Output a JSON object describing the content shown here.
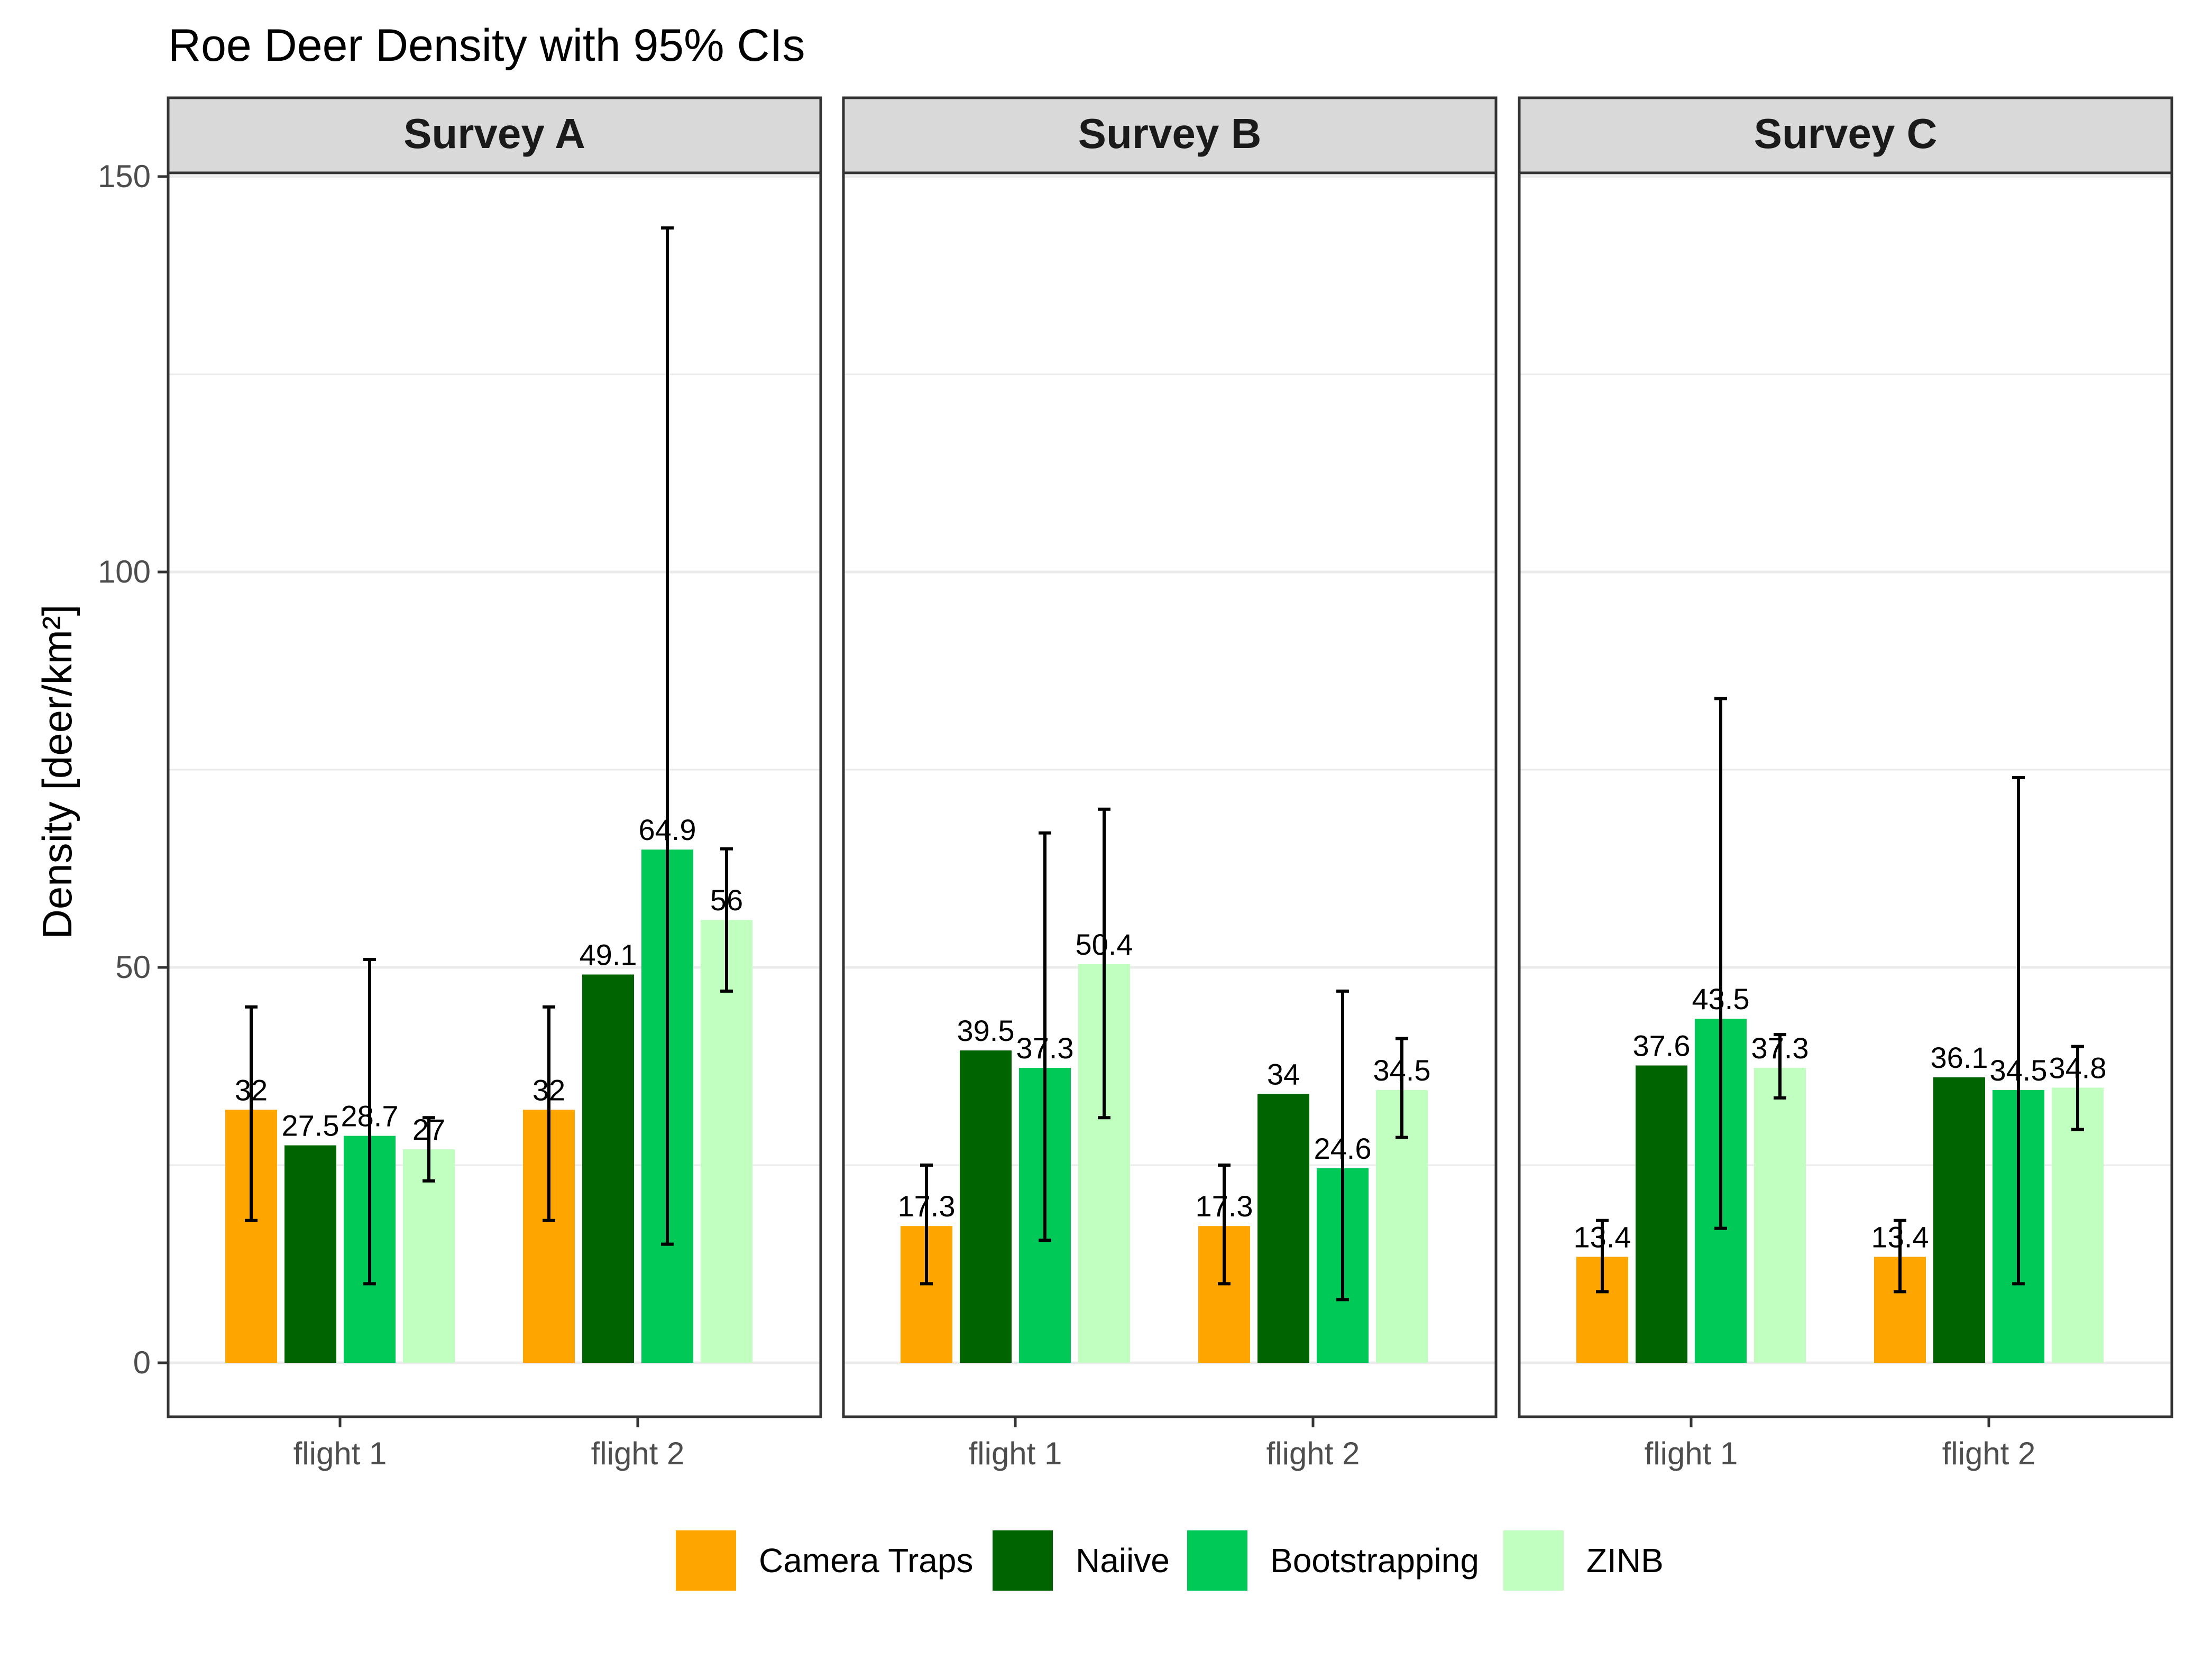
{
  "chart_data": {
    "type": "bar",
    "title": "Roe Deer Density with 95% CIs",
    "ylabel": "Density [deer/km²]",
    "xlabel": "",
    "ylim": [
      0,
      150
    ],
    "yticks": [
      0,
      50,
      100,
      150
    ],
    "grid": true,
    "legend_position": "bottom",
    "categories": [
      "flight 1",
      "flight 2"
    ],
    "series": [
      {
        "name": "Camera Traps",
        "color": "#FFA500"
      },
      {
        "name": "Naiive",
        "color": "#006400"
      },
      {
        "name": "Bootstrapping",
        "color": "#00C957"
      },
      {
        "name": "ZINB",
        "color": "#C1FFC1"
      }
    ],
    "panels": [
      {
        "name": "Survey A",
        "values": [
          [
            32,
            27.5,
            28.7,
            27
          ],
          [
            32,
            49.1,
            64.9,
            56
          ]
        ],
        "labels": [
          [
            "32",
            "27.5",
            "28.7",
            "27"
          ],
          [
            "32",
            "49.1",
            "64.9",
            "56"
          ]
        ],
        "ci": [
          [
            [
              18,
              45
            ],
            null,
            [
              10,
              51
            ],
            [
              23,
              31
            ]
          ],
          [
            [
              18,
              45
            ],
            null,
            [
              15,
              143.5
            ],
            [
              47,
              65
            ]
          ]
        ]
      },
      {
        "name": "Survey B",
        "values": [
          [
            17.3,
            39.5,
            37.3,
            50.4
          ],
          [
            17.3,
            34,
            24.6,
            34.5
          ]
        ],
        "labels": [
          [
            "17.3",
            "39.5",
            "37.3",
            "50.4"
          ],
          [
            "17.3",
            "34",
            "24.6",
            "34.5"
          ]
        ],
        "ci": [
          [
            [
              10,
              25
            ],
            null,
            [
              15.5,
              67
            ],
            [
              31,
              70
            ]
          ],
          [
            [
              10,
              25
            ],
            null,
            [
              8,
              47
            ],
            [
              28.5,
              41
            ]
          ]
        ]
      },
      {
        "name": "Survey C",
        "values": [
          [
            13.4,
            37.6,
            43.5,
            37.3
          ],
          [
            13.4,
            36.1,
            34.5,
            34.8
          ]
        ],
        "labels": [
          [
            "13.4",
            "37.6",
            "43.5",
            "37.3"
          ],
          [
            "13.4",
            "36.1",
            "34.5",
            "34.8"
          ]
        ],
        "ci": [
          [
            [
              9,
              18
            ],
            null,
            [
              17,
              84
            ],
            [
              33.5,
              41.5
            ]
          ],
          [
            [
              9,
              18
            ],
            null,
            [
              10,
              74
            ],
            [
              29.5,
              40
            ]
          ]
        ]
      }
    ]
  }
}
